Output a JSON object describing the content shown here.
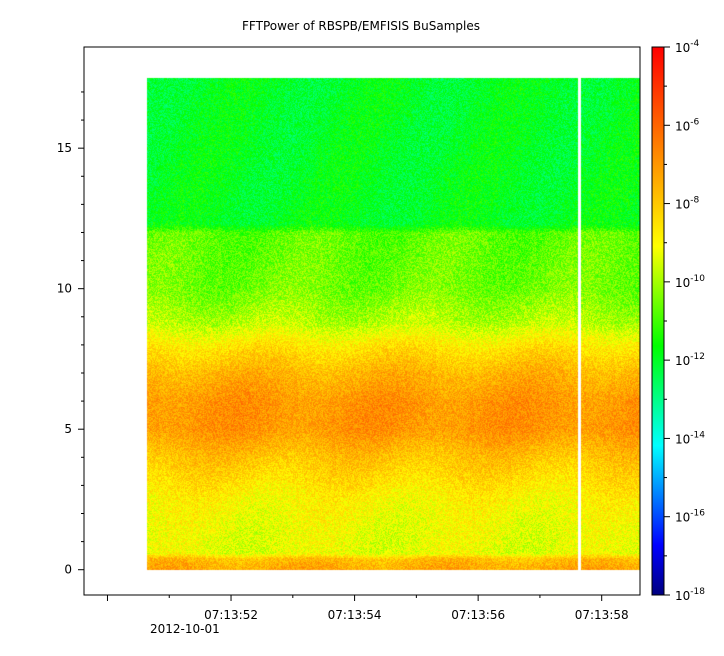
{
  "chart_data": {
    "type": "heatmap",
    "title": "FFTPower of RBSPB/EMFISIS  BuSamples",
    "xlabel": "",
    "ylabel": "",
    "x_tick_labels": [
      "07:13:52",
      "07:13:54",
      "07:13:56",
      "07:13:58"
    ],
    "x_date_label": "2012-10-01",
    "x_tick_seconds": [
      52,
      54,
      56,
      58
    ],
    "xlim_seconds": [
      49.62,
      58.62
    ],
    "data_x_range_seconds": [
      50.63,
      58.62
    ],
    "gap_seconds": 57.63,
    "y_ticks": [
      0,
      5,
      10,
      15
    ],
    "ylim": [
      -0.9,
      18.6
    ],
    "data_y_range": [
      0,
      17.5
    ],
    "colorbar": {
      "scale": "log",
      "range": [
        1e-18,
        0.0001
      ],
      "tick_base": "10",
      "tick_exponents": [
        "-4",
        "-6",
        "-8",
        "-10",
        "-12",
        "-14",
        "-16",
        "-18"
      ],
      "colors": [
        "#00007f",
        "#0000ff",
        "#007fff",
        "#00ffff",
        "#00ff7f",
        "#00ff00",
        "#7fff00",
        "#ffff00",
        "#ffbf00",
        "#ff7f00",
        "#ff3f00",
        "#ff0000"
      ]
    },
    "power_profile_log10": [
      {
        "f": 0.0,
        "p": -7.3
      },
      {
        "f": 0.4,
        "p": -7.8
      },
      {
        "f": 0.6,
        "p": -9.3
      },
      {
        "f": 1.5,
        "p": -9.2
      },
      {
        "f": 2.5,
        "p": -8.9
      },
      {
        "f": 4.0,
        "p": -7.9
      },
      {
        "f": 5.0,
        "p": -7.0
      },
      {
        "f": 6.0,
        "p": -7.0
      },
      {
        "f": 7.0,
        "p": -7.6
      },
      {
        "f": 8.0,
        "p": -8.6
      },
      {
        "f": 8.8,
        "p": -9.8
      },
      {
        "f": 10.0,
        "p": -10.5
      },
      {
        "f": 12.0,
        "p": -10.7
      },
      {
        "f": 12.3,
        "p": -11.9
      },
      {
        "f": 17.5,
        "p": -12.0
      }
    ]
  }
}
